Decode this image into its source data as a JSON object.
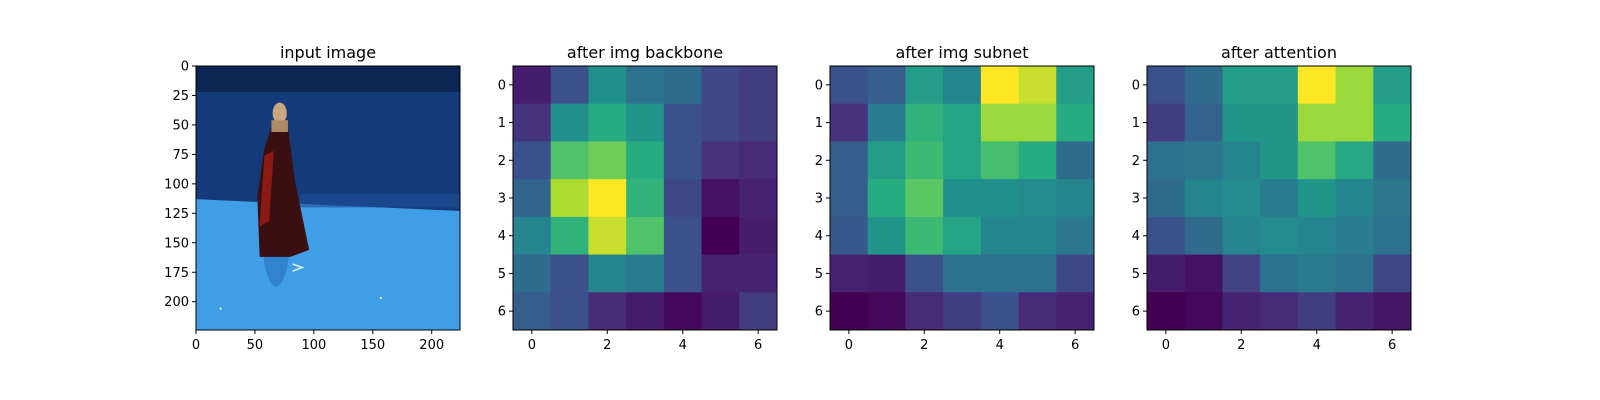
{
  "chart_data": [
    {
      "type": "image",
      "title": "input image",
      "xlim": [
        0,
        224
      ],
      "ylim": [
        224,
        0
      ],
      "x_ticks": [
        0,
        50,
        100,
        150,
        200
      ],
      "y_ticks": [
        0,
        25,
        50,
        75,
        100,
        125,
        150,
        175,
        200
      ],
      "x_tick_labels": [
        "0",
        "50",
        "100",
        "150",
        "200"
      ],
      "y_tick_labels": [
        "0",
        "25",
        "50",
        "75",
        "100",
        "125",
        "150",
        "175",
        "200"
      ],
      "scene": {
        "wall_color": "#153a7a",
        "floor_color": "#3f9ee6",
        "horizon_y": [
          113,
          123
        ],
        "figure_color": "#3a0f12"
      }
    },
    {
      "type": "heatmap",
      "title": "after img backbone",
      "colormap": "viridis",
      "x_ticks": [
        0,
        2,
        4,
        6
      ],
      "y_ticks": [
        0,
        1,
        2,
        3,
        4,
        5,
        6
      ],
      "x_tick_labels": [
        "0",
        "2",
        "4",
        "6"
      ],
      "y_tick_labels": [
        "0",
        "1",
        "2",
        "3",
        "4",
        "5",
        "6"
      ],
      "values": [
        [
          0.08,
          0.25,
          0.5,
          0.38,
          0.35,
          0.22,
          0.18
        ],
        [
          0.15,
          0.5,
          0.62,
          0.52,
          0.25,
          0.22,
          0.18
        ],
        [
          0.25,
          0.72,
          0.78,
          0.62,
          0.25,
          0.15,
          0.12
        ],
        [
          0.33,
          0.88,
          1.0,
          0.65,
          0.22,
          0.05,
          0.1
        ],
        [
          0.45,
          0.65,
          0.92,
          0.72,
          0.25,
          0.0,
          0.08
        ],
        [
          0.35,
          0.25,
          0.45,
          0.42,
          0.25,
          0.1,
          0.1
        ],
        [
          0.3,
          0.25,
          0.12,
          0.08,
          0.02,
          0.08,
          0.18
        ]
      ]
    },
    {
      "type": "heatmap",
      "title": "after img subnet",
      "colormap": "viridis",
      "x_ticks": [
        0,
        2,
        4,
        6
      ],
      "y_ticks": [
        0,
        1,
        2,
        3,
        4,
        5,
        6
      ],
      "x_tick_labels": [
        "0",
        "2",
        "4",
        "6"
      ],
      "y_tick_labels": [
        "0",
        "1",
        "2",
        "3",
        "4",
        "5",
        "6"
      ],
      "values": [
        [
          0.25,
          0.3,
          0.55,
          0.45,
          1.0,
          0.92,
          0.55
        ],
        [
          0.15,
          0.42,
          0.65,
          0.58,
          0.85,
          0.85,
          0.62
        ],
        [
          0.3,
          0.55,
          0.68,
          0.58,
          0.7,
          0.62,
          0.35
        ],
        [
          0.3,
          0.62,
          0.75,
          0.5,
          0.5,
          0.48,
          0.45
        ],
        [
          0.28,
          0.52,
          0.68,
          0.58,
          0.45,
          0.45,
          0.4
        ],
        [
          0.1,
          0.08,
          0.25,
          0.38,
          0.38,
          0.38,
          0.22
        ],
        [
          0.0,
          0.02,
          0.12,
          0.18,
          0.25,
          0.12,
          0.1
        ]
      ]
    },
    {
      "type": "heatmap",
      "title": "after attention",
      "colormap": "viridis",
      "x_ticks": [
        0,
        2,
        4,
        6
      ],
      "y_ticks": [
        0,
        1,
        2,
        3,
        4,
        5,
        6
      ],
      "x_tick_labels": [
        "0",
        "2",
        "4",
        "6"
      ],
      "y_tick_labels": [
        "0",
        "1",
        "2",
        "3",
        "4",
        "5",
        "6"
      ],
      "values": [
        [
          0.25,
          0.35,
          0.55,
          0.55,
          1.0,
          0.85,
          0.55
        ],
        [
          0.18,
          0.32,
          0.52,
          0.52,
          0.85,
          0.85,
          0.62
        ],
        [
          0.38,
          0.4,
          0.45,
          0.52,
          0.72,
          0.6,
          0.35
        ],
        [
          0.35,
          0.45,
          0.48,
          0.42,
          0.52,
          0.45,
          0.4
        ],
        [
          0.25,
          0.35,
          0.45,
          0.48,
          0.45,
          0.42,
          0.38
        ],
        [
          0.08,
          0.05,
          0.2,
          0.38,
          0.42,
          0.38,
          0.22
        ],
        [
          0.0,
          0.02,
          0.1,
          0.12,
          0.18,
          0.1,
          0.06
        ]
      ]
    }
  ]
}
